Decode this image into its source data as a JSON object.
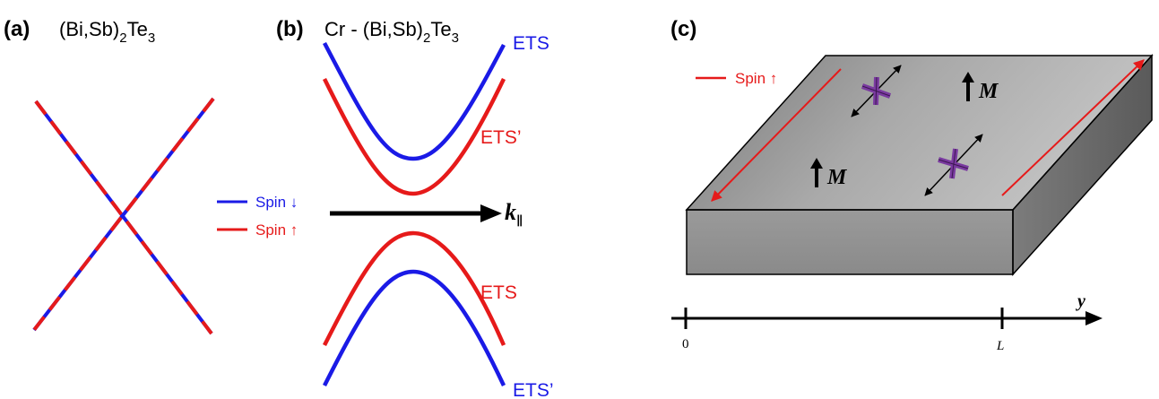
{
  "colors": {
    "spin_down": "#1a1ae6",
    "spin_up": "#e61a1a",
    "black": "#000000",
    "slab_dark": "#6e6e6e",
    "slab_light": "#bdbdbd",
    "slab_front": "#8f8f8f",
    "impurity": "#7a3aa0"
  },
  "panel_a": {
    "letter": "(a)",
    "title_main": "(Bi,Sb)",
    "title_sub1": "2",
    "title_mid": "Te",
    "title_sub2": "3"
  },
  "panel_b": {
    "letter": "(b)",
    "title_main": "Cr - (Bi,Sb)",
    "title_sub1": "2",
    "title_mid": "Te",
    "title_sub2": "3",
    "label_upper_blue": "ETS",
    "label_upper_red": "ETS’",
    "label_lower_red": "ETS",
    "label_lower_blue": "ETS’",
    "axis_k": "k",
    "axis_k_sub": "∥",
    "legend": [
      {
        "label": "Spin ↓",
        "color_key": "spin_down"
      },
      {
        "label": "Spin ↑",
        "color_key": "spin_up"
      }
    ]
  },
  "panel_c": {
    "letter": "(c)",
    "legend_label": "Spin ↑",
    "m_label_1": "M",
    "m_label_2": "M",
    "axis_y": "y",
    "tick_0": "0",
    "tick_L": "L"
  }
}
